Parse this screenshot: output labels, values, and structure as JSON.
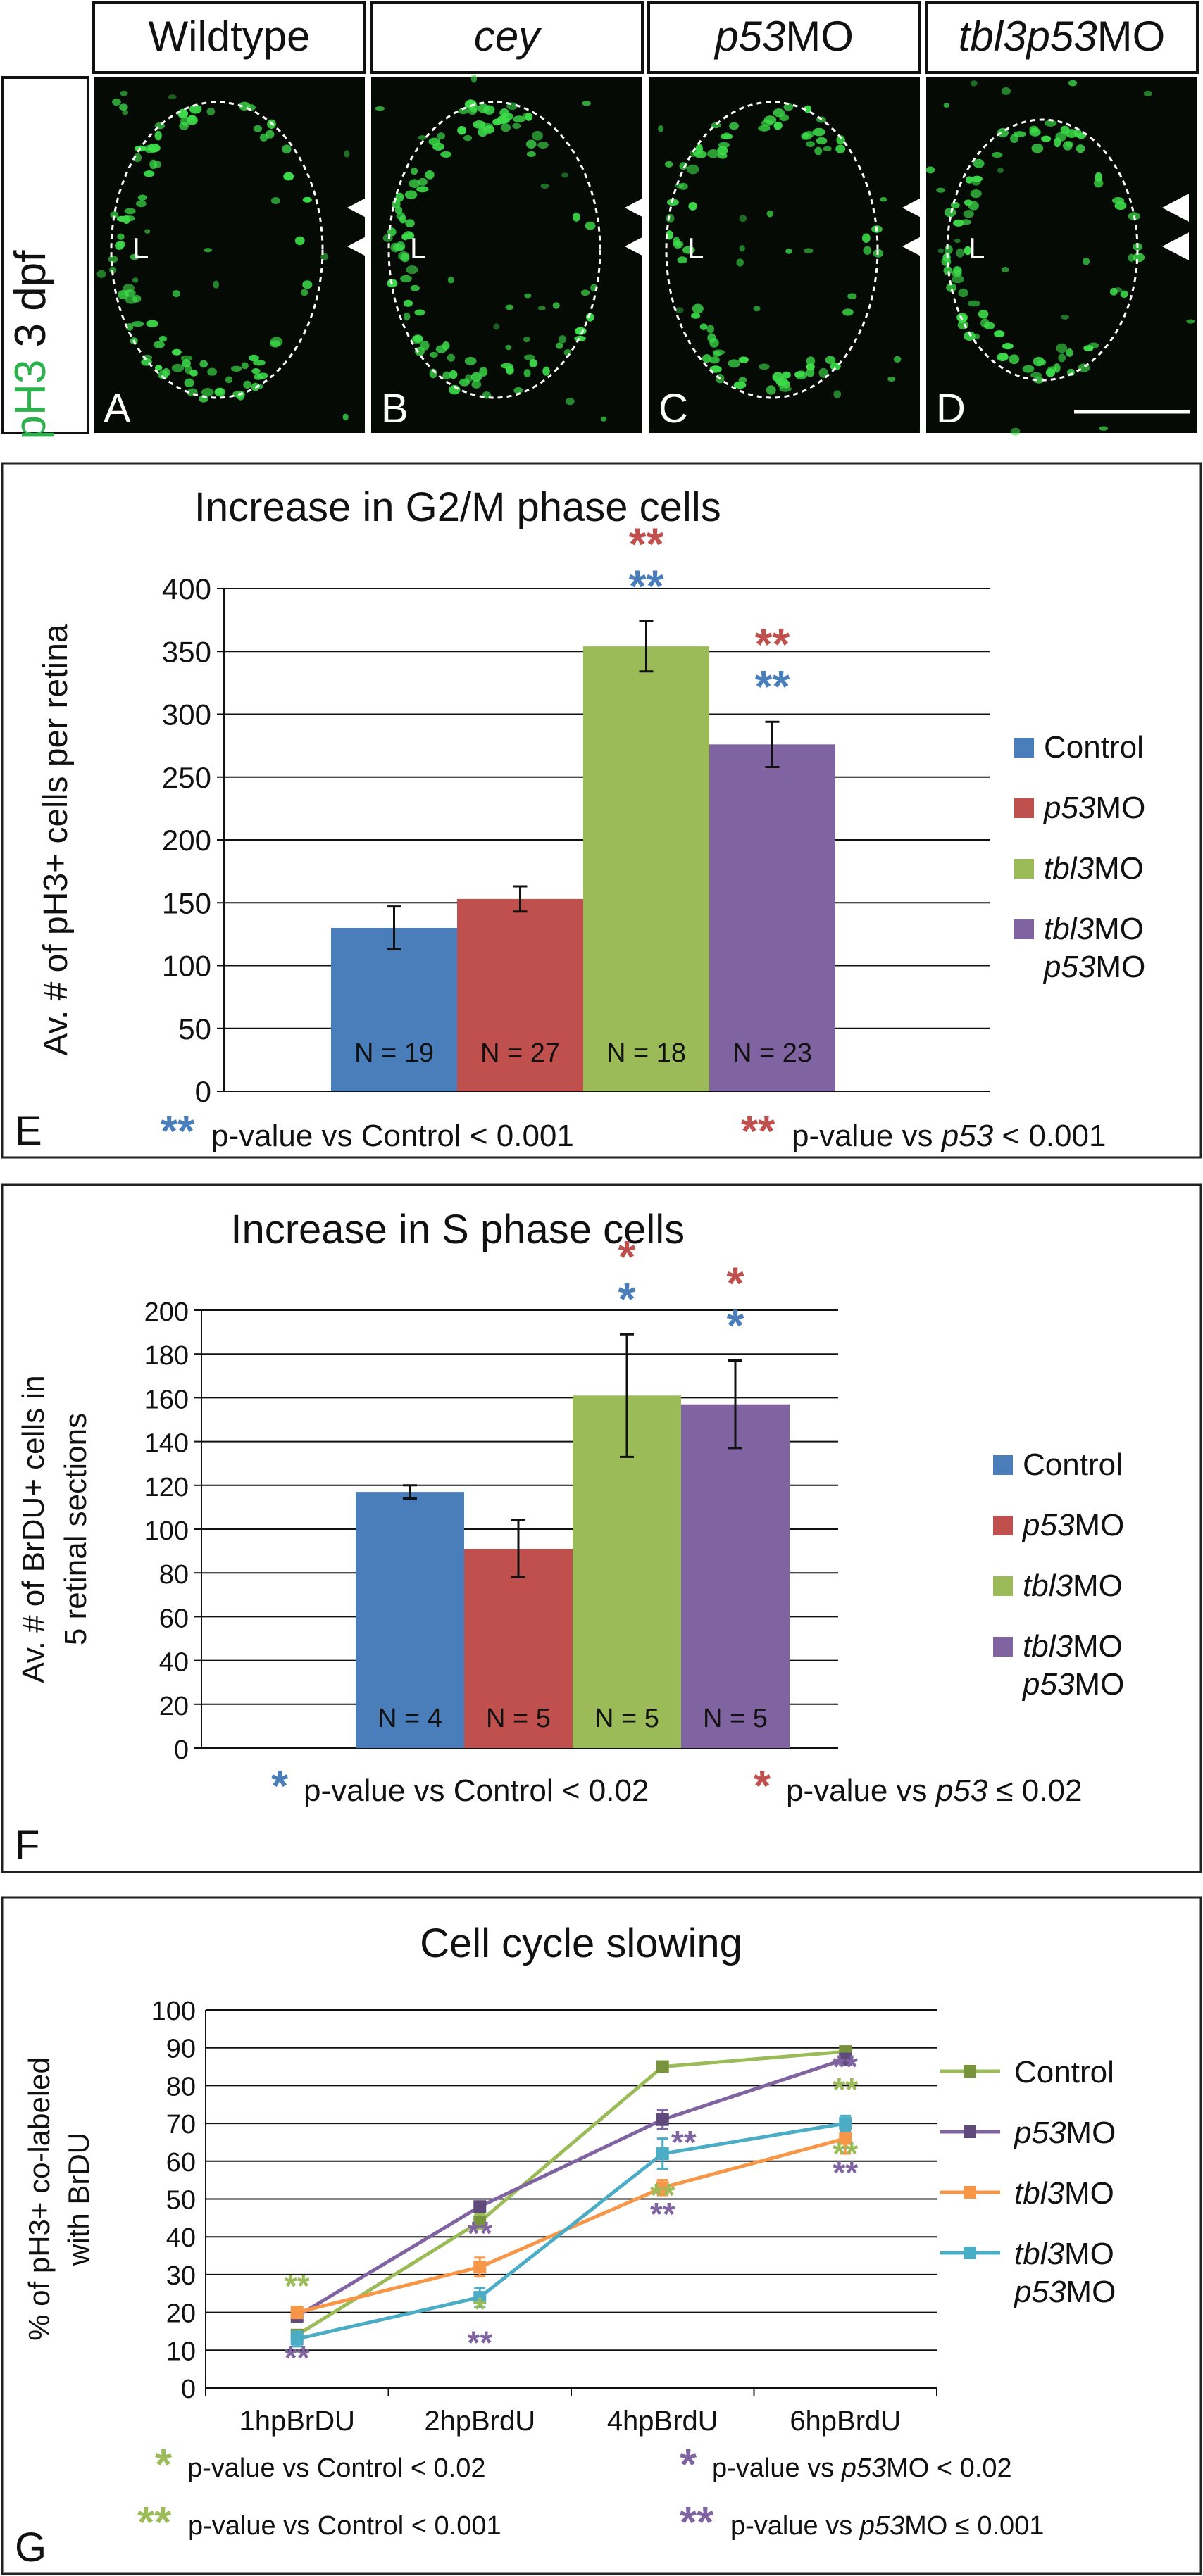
{
  "figure": {
    "stain_label": "pH3",
    "stage_label": "3 dpf",
    "panels_top": [
      {
        "header": "Wildtype",
        "header_italic": "",
        "letter": "A",
        "lumen": "L"
      },
      {
        "header": "",
        "header_italic": "cey",
        "letter": "B",
        "lumen": "L"
      },
      {
        "header": "MO",
        "header_italic": "p53",
        "letter": "C",
        "lumen": "L"
      },
      {
        "header": "MO",
        "header_italic": "tbl3p53",
        "letter": "D",
        "lumen": "L"
      }
    ]
  },
  "colors": {
    "blue": "#4a7ebb",
    "red": "#c0504d",
    "green": "#9bbb59",
    "purple": "#8064a2",
    "orange": "#f79646",
    "teal": "#4bacc6",
    "olive": "#77933c",
    "dark_purple": "#604a7b",
    "micro_bg": "#050a05",
    "micro_cells": "#3ddc4a"
  },
  "chart_data": [
    {
      "type": "bar",
      "panel_letter": "E",
      "title": "Increase in G2/M phase cells",
      "ylabel": "Av. # of pH3+ cells per retina",
      "ylim": [
        0,
        400
      ],
      "yticks": [
        0,
        50,
        100,
        150,
        200,
        250,
        300,
        350,
        400
      ],
      "categories": [
        "Control",
        "p53MO",
        "tbl3MO",
        "tbl3MO p53MO"
      ],
      "values": [
        130,
        153,
        354,
        276
      ],
      "errors": [
        17,
        10,
        20,
        18
      ],
      "n_labels": [
        "N = 19",
        "N = 27",
        "N = 18",
        "N = 23"
      ],
      "significance": [
        {
          "bar": 2,
          "blue": "**",
          "red": "**"
        },
        {
          "bar": 3,
          "blue": "**",
          "red": "**"
        }
      ],
      "legend": [
        {
          "name": "Control",
          "italic": "",
          "rest": "Control",
          "line2": ""
        },
        {
          "name": "p53MO",
          "italic": "p53",
          "rest": "MO",
          "line2": ""
        },
        {
          "name": "tbl3MO",
          "italic": "tbl3",
          "rest": "MO",
          "line2": ""
        },
        {
          "name": "tbl3MO p53MO",
          "italic": "tbl3",
          "rest": "MO",
          "line2": "p53MO"
        }
      ],
      "footnote": {
        "blue_text": "p-value vs Control < 0.001",
        "red_prefix": "p-value vs ",
        "red_italic": "p53",
        "red_suffix": " < 0.001",
        "blue_mark": "**",
        "red_mark": "**"
      }
    },
    {
      "type": "bar",
      "panel_letter": "F",
      "title": "Increase in S phase cells",
      "ylabel_line1": "Av. # of BrDU+ cells in",
      "ylabel_line2": "5 retinal sections",
      "ylim": [
        0,
        200
      ],
      "yticks": [
        0,
        20,
        40,
        60,
        80,
        100,
        120,
        140,
        160,
        180,
        200
      ],
      "categories": [
        "Control",
        "p53MO",
        "tbl3MO",
        "tbl3MO p53MO"
      ],
      "values": [
        117,
        91,
        161,
        157
      ],
      "errors": [
        3,
        13,
        28,
        20
      ],
      "n_labels": [
        "N = 4",
        "N = 5",
        "N = 5",
        "N = 5"
      ],
      "significance": [
        {
          "bar": 2,
          "blue": "*",
          "red": "*"
        },
        {
          "bar": 3,
          "blue": "*",
          "red": "*"
        }
      ],
      "legend": [
        {
          "name": "Control",
          "italic": "",
          "rest": "Control",
          "line2": ""
        },
        {
          "name": "p53MO",
          "italic": "p53",
          "rest": "MO",
          "line2": ""
        },
        {
          "name": "tbl3MO",
          "italic": "tbl3",
          "rest": "MO",
          "line2": ""
        },
        {
          "name": "tbl3MO p53MO",
          "italic": "tbl3",
          "rest": "MO",
          "line2": "p53MO"
        }
      ],
      "footnote": {
        "blue_text": "p-value vs Control < 0.02",
        "red_prefix": "p-value vs ",
        "red_italic": "p53",
        "red_suffix": " ≤ 0.02",
        "blue_mark": "*",
        "red_mark": "*"
      }
    },
    {
      "type": "line",
      "panel_letter": "G",
      "title": "Cell cycle slowing",
      "ylabel_line1": "% of pH3+ co-labeled",
      "ylabel_line2": "with BrDU",
      "ylim": [
        0,
        100
      ],
      "yticks": [
        0,
        10,
        20,
        30,
        40,
        50,
        60,
        70,
        80,
        90,
        100
      ],
      "x": [
        "1hpBrDU",
        "2hpBrdU",
        "4hpBrdU",
        "6hpBrdU"
      ],
      "series": [
        {
          "name": "Control",
          "italic": "",
          "rest": "Control",
          "line2": "",
          "values": [
            14,
            44,
            85,
            89
          ],
          "errors": [
            0,
            2,
            0,
            1
          ]
        },
        {
          "name": "p53MO",
          "italic": "p53",
          "rest": "MO",
          "line2": "",
          "values": [
            19,
            48,
            71,
            87
          ],
          "errors": [
            1,
            1,
            2.5,
            1.5
          ]
        },
        {
          "name": "tbl3MO",
          "italic": "tbl3",
          "rest": "MO",
          "line2": "",
          "values": [
            20,
            32,
            53,
            66
          ],
          "errors": [
            1.5,
            2.5,
            2,
            4
          ]
        },
        {
          "name": "tbl3MO p53MO",
          "italic": "tbl3",
          "rest": "MO",
          "line2": "p53MO",
          "values": [
            13,
            24,
            62,
            70
          ],
          "errors": [
            2,
            2.5,
            4,
            2
          ]
        }
      ],
      "significance": [
        {
          "x": 0,
          "value": 24,
          "color": "green",
          "mark": "**"
        },
        {
          "x": 0,
          "value": 5,
          "color": "purple",
          "mark": "**"
        },
        {
          "x": 1,
          "value": 38,
          "color": "purple",
          "mark": "**"
        },
        {
          "x": 1,
          "value": 18,
          "color": "green",
          "mark": "*"
        },
        {
          "x": 1,
          "value": 9,
          "color": "purple",
          "mark": "**"
        },
        {
          "x": 2,
          "value": 62,
          "color": "purple",
          "mark": "**"
        },
        {
          "x": 2,
          "value": 48,
          "color": "green",
          "mark": "**"
        },
        {
          "x": 2,
          "value": 43,
          "color": "purple",
          "mark": "**"
        },
        {
          "x": 3,
          "value": 82,
          "color": "purple",
          "mark": "**"
        },
        {
          "x": 3,
          "value": 76,
          "color": "green",
          "mark": "**"
        },
        {
          "x": 3,
          "value": 59,
          "color": "green",
          "mark": "**"
        },
        {
          "x": 3,
          "value": 54,
          "color": "purple",
          "mark": "**"
        }
      ],
      "footnote": [
        {
          "color": "green",
          "mark": "*",
          "prefix": "p-value vs Control < 0.02",
          "italic": "",
          "suffix": ""
        },
        {
          "color": "purple",
          "mark": "*",
          "prefix": "p-value vs ",
          "italic": "p53",
          "suffix": "MO < 0.02"
        },
        {
          "color": "green",
          "mark": "**",
          "prefix": "p-value vs Control < 0.001",
          "italic": "",
          "suffix": ""
        },
        {
          "color": "purple",
          "mark": "**",
          "prefix": "p-value vs ",
          "italic": "p53",
          "suffix": "MO ≤ 0.001"
        }
      ]
    }
  ]
}
